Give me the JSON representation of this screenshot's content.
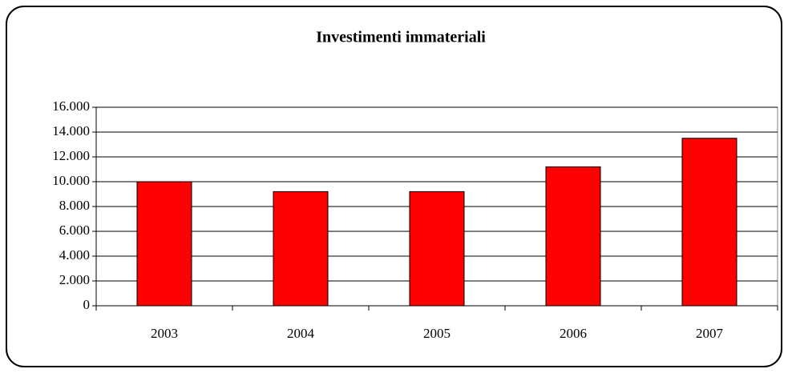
{
  "chart_data": {
    "type": "bar",
    "title": "Investimenti immateriali",
    "categories": [
      "2003",
      "2004",
      "2005",
      "2006",
      "2007"
    ],
    "values": [
      10000,
      9200,
      9200,
      11200,
      13500
    ],
    "color": "#ff0000",
    "ylim": [
      0,
      16000
    ],
    "yticks": [
      0,
      {
        "value": 2000,
        "label": "2.000"
      },
      {
        "value": 4000,
        "label": "4.000"
      },
      {
        "value": 6000,
        "label": "6.000"
      },
      {
        "value": 8000,
        "label": "8.000"
      },
      {
        "value": 10000,
        "label": "10.000"
      },
      {
        "value": 12000,
        "label": "12.000"
      },
      {
        "value": 14000,
        "label": "14.000"
      },
      {
        "value": 16000,
        "label": "16.000"
      }
    ],
    "grid": true
  }
}
